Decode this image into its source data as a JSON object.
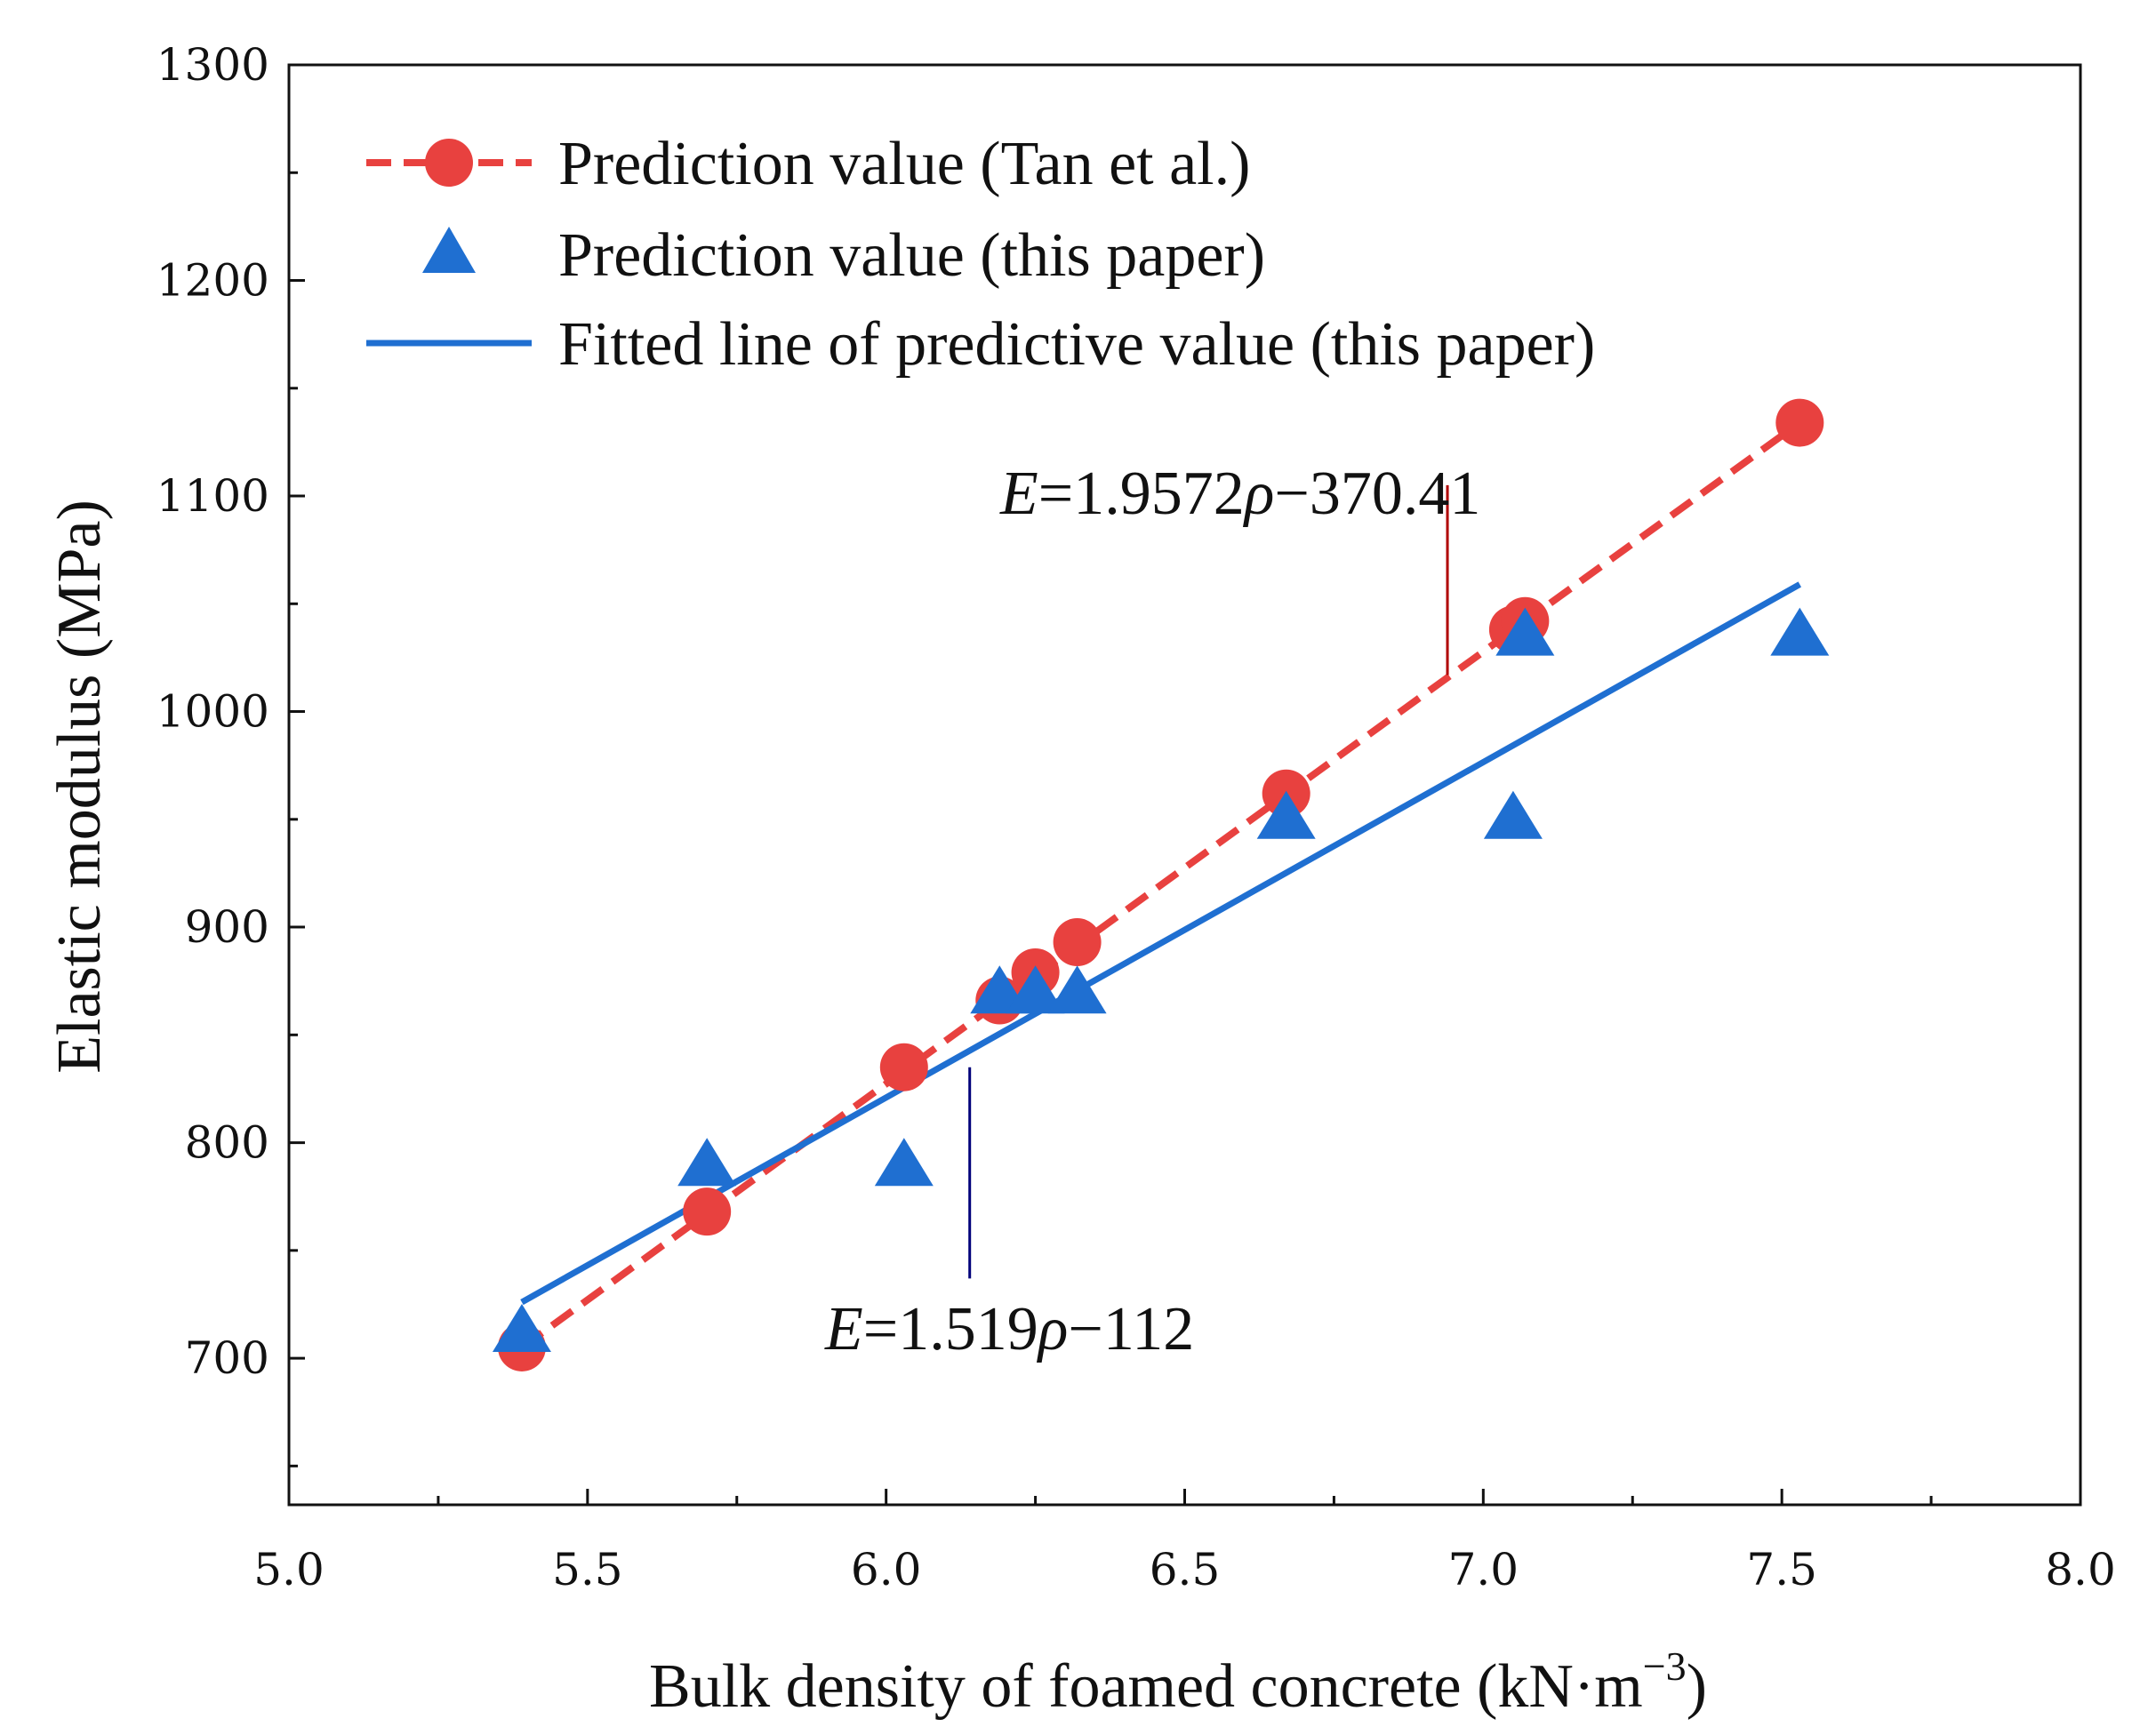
{
  "chart_data": {
    "type": "scatter",
    "title": "",
    "xlabel": "Bulk density of foamed concrete (kN·m",
    "xlabel_superscript": "−3",
    "xlabel_close": ")",
    "ylabel": "Elastic modulus (MPa)",
    "xlim": [
      5.0,
      8.0
    ],
    "ylim": [
      632,
      1300
    ],
    "x_ticks": [
      5.0,
      5.5,
      6.0,
      6.5,
      7.0,
      7.5,
      8.0
    ],
    "x_tick_labels": [
      "5.0",
      "5.5",
      "6.0",
      "6.5",
      "7.0",
      "7.5",
      "8.0"
    ],
    "x_minor_ticks": [
      5.25,
      5.75,
      6.25,
      6.75,
      7.25,
      7.75
    ],
    "y_ticks": [
      700,
      800,
      900,
      1000,
      1100,
      1200,
      1300
    ],
    "y_tick_labels": [
      "700",
      "800",
      "900",
      "1000",
      "1100",
      "1200",
      "1300"
    ],
    "y_minor_ticks": [
      650,
      750,
      850,
      950,
      1050,
      1150,
      1250
    ],
    "grid": false,
    "legend_position": "top-left",
    "series": [
      {
        "name": "Prediction value (Tan et al.)",
        "marker": "circle",
        "line": "dashed",
        "color": "#e8413f",
        "x": [
          5.39,
          5.7,
          6.03,
          6.19,
          6.25,
          6.32,
          6.67,
          7.05,
          7.07,
          7.53
        ],
        "y": [
          705,
          768,
          835,
          866,
          879,
          893,
          962,
          1038,
          1042,
          1134
        ]
      },
      {
        "name": "Prediction value (this paper)",
        "marker": "triangle",
        "line": "none",
        "color": "#1f6fd1",
        "x": [
          5.39,
          5.7,
          6.03,
          6.19,
          6.25,
          6.32,
          6.67,
          7.05,
          7.07,
          7.53
        ],
        "y": [
          712,
          789,
          789,
          869,
          869,
          869,
          950,
          950,
          1035,
          1035
        ]
      },
      {
        "name": "Fitted line of predictive value (this paper)",
        "marker": "none",
        "line": "solid",
        "color": "#1f6fd1",
        "x": [
          5.39,
          7.53
        ],
        "y": [
          726,
          1059
        ]
      }
    ],
    "annotations": [
      {
        "prefix": "E",
        "text": "=1.9572",
        "symbol": "ρ",
        "suffix": "−370.41",
        "color": "#b00000",
        "pointer_x": 6.94,
        "pointer_y_range": [
          1017,
          1105
        ]
      },
      {
        "prefix": "E",
        "text": "=1.519",
        "symbol": "ρ",
        "suffix": "−112",
        "color": "#00007a",
        "pointer_x": 6.14,
        "pointer_y_range": [
          737,
          835
        ]
      }
    ]
  }
}
